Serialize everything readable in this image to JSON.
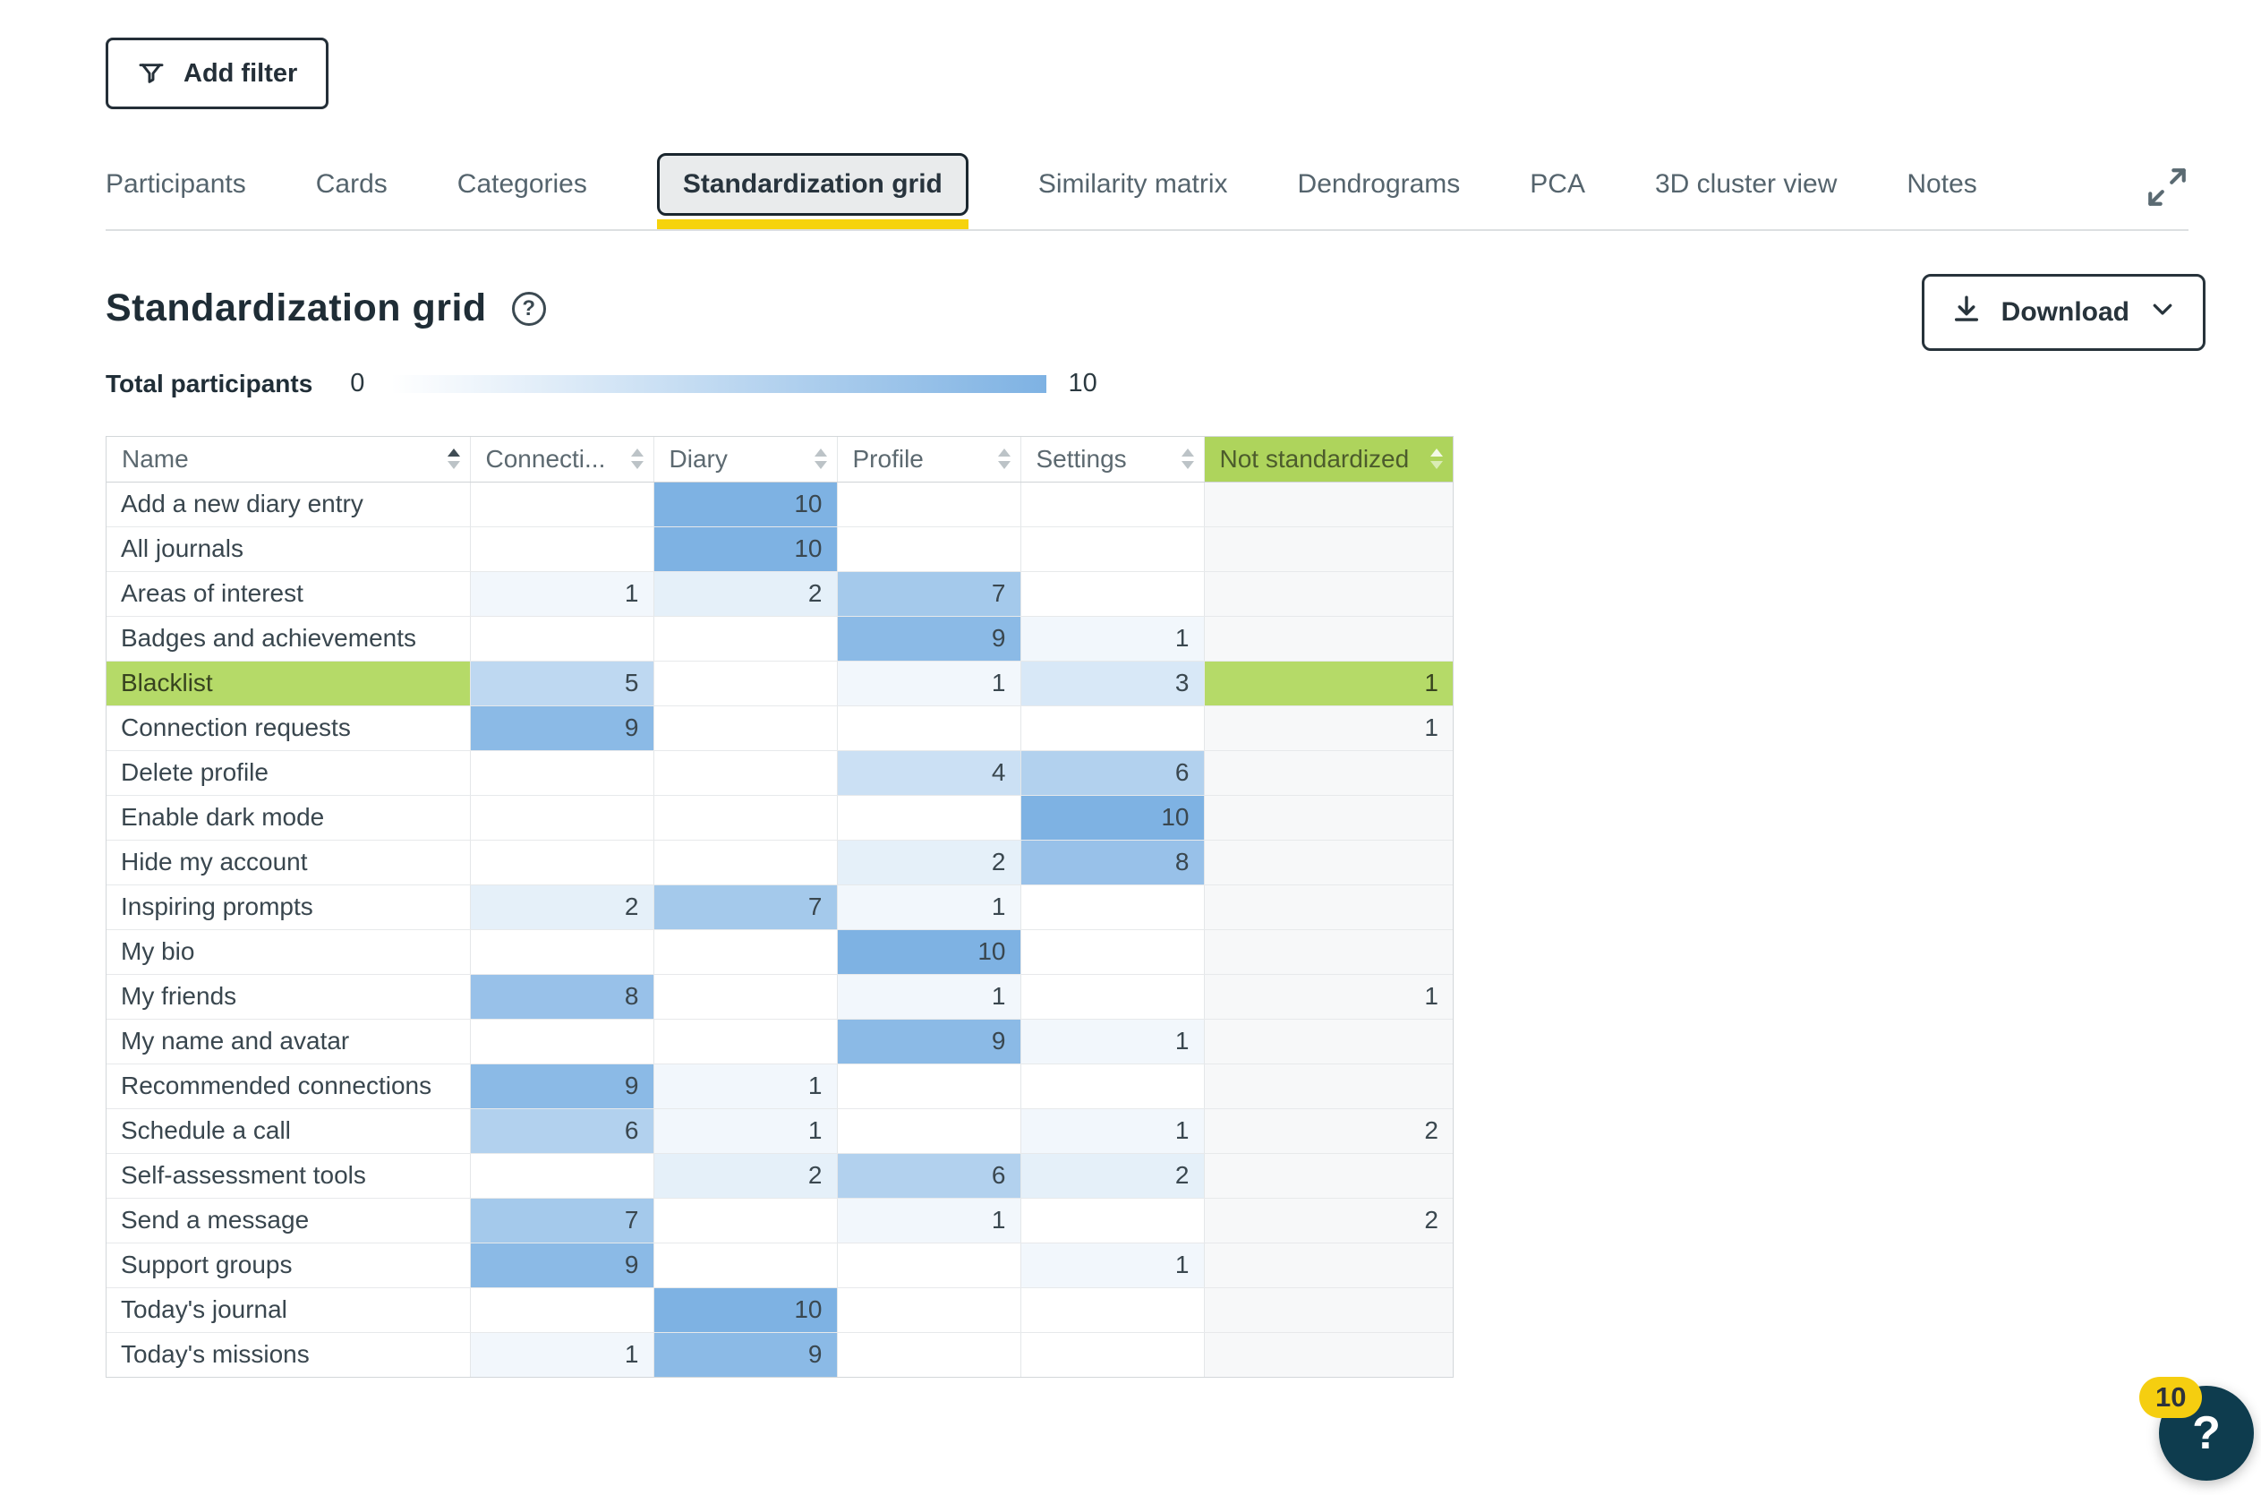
{
  "toolbar": {
    "add_filter_label": "Add filter"
  },
  "tabs": {
    "active_index": 3,
    "items": [
      {
        "label": "Participants"
      },
      {
        "label": "Cards"
      },
      {
        "label": "Categories"
      },
      {
        "label": "Standardization grid"
      },
      {
        "label": "Similarity matrix"
      },
      {
        "label": "Dendrograms"
      },
      {
        "label": "PCA"
      },
      {
        "label": "3D cluster view"
      },
      {
        "label": "Notes"
      }
    ]
  },
  "page": {
    "title": "Standardization grid"
  },
  "download": {
    "label": "Download"
  },
  "legend": {
    "label": "Total participants",
    "min": "0",
    "max": "10"
  },
  "colors": {
    "accent_yellow": "#f6d30d",
    "heat_blue": "#7eb2e3",
    "highlight_green": "#b5da68",
    "header_green": "#aed45c",
    "badge_yellow": "#f5ce10",
    "help_circle_teal": "#0e3c4e"
  },
  "grid": {
    "max_value": 10,
    "columns": [
      {
        "label": "Name",
        "sort": "asc",
        "type": "name"
      },
      {
        "label": "Connecti...",
        "type": "heat"
      },
      {
        "label": "Diary",
        "type": "heat"
      },
      {
        "label": "Profile",
        "type": "heat"
      },
      {
        "label": "Settings",
        "type": "heat"
      },
      {
        "label": "Not standardized",
        "type": "plain",
        "theme": "green"
      }
    ],
    "rows": [
      {
        "name": "Add a new diary entry",
        "values": [
          null,
          10,
          null,
          null,
          null
        ],
        "highlight": false
      },
      {
        "name": "All journals",
        "values": [
          null,
          10,
          null,
          null,
          null
        ],
        "highlight": false
      },
      {
        "name": "Areas of interest",
        "values": [
          1,
          2,
          7,
          null,
          null
        ],
        "highlight": false
      },
      {
        "name": "Badges and achievements",
        "values": [
          null,
          null,
          9,
          1,
          null
        ],
        "highlight": false
      },
      {
        "name": "Blacklist",
        "values": [
          5,
          null,
          1,
          3,
          1
        ],
        "highlight": true
      },
      {
        "name": "Connection requests",
        "values": [
          9,
          null,
          null,
          null,
          1
        ],
        "highlight": false
      },
      {
        "name": "Delete profile",
        "values": [
          null,
          null,
          4,
          6,
          null
        ],
        "highlight": false
      },
      {
        "name": "Enable dark mode",
        "values": [
          null,
          null,
          null,
          10,
          null
        ],
        "highlight": false
      },
      {
        "name": "Hide my account",
        "values": [
          null,
          null,
          2,
          8,
          null
        ],
        "highlight": false
      },
      {
        "name": "Inspiring prompts",
        "values": [
          2,
          7,
          1,
          null,
          null
        ],
        "highlight": false
      },
      {
        "name": "My bio",
        "values": [
          null,
          null,
          10,
          null,
          null
        ],
        "highlight": false
      },
      {
        "name": "My friends",
        "values": [
          8,
          null,
          1,
          null,
          1
        ],
        "highlight": false
      },
      {
        "name": "My name and avatar",
        "values": [
          null,
          null,
          9,
          1,
          null
        ],
        "highlight": false
      },
      {
        "name": "Recommended connections",
        "values": [
          9,
          1,
          null,
          null,
          null
        ],
        "highlight": false
      },
      {
        "name": "Schedule a call",
        "values": [
          6,
          1,
          null,
          1,
          2
        ],
        "highlight": false
      },
      {
        "name": "Self-assessment tools",
        "values": [
          null,
          2,
          6,
          2,
          null
        ],
        "highlight": false
      },
      {
        "name": "Send a message",
        "values": [
          7,
          null,
          1,
          null,
          2
        ],
        "highlight": false
      },
      {
        "name": "Support groups",
        "values": [
          9,
          null,
          null,
          1,
          null
        ],
        "highlight": false
      },
      {
        "name": "Today's journal",
        "values": [
          null,
          10,
          null,
          null,
          null
        ],
        "highlight": false
      },
      {
        "name": "Today's missions",
        "values": [
          1,
          9,
          null,
          null,
          null
        ],
        "highlight": false
      }
    ]
  },
  "help": {
    "badge": "10",
    "question_mark": "?"
  }
}
